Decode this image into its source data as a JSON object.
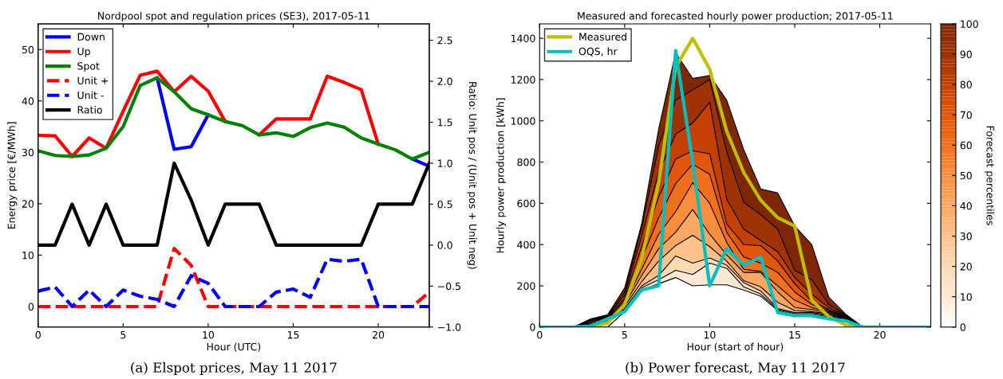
{
  "chart_data": [
    {
      "type": "line",
      "title": "Nordpool spot and regulation prices (SE3), 2017-05-11",
      "xlabel": "Hour (UTC)",
      "ylabel": "Energy price [€/MWh]",
      "y2label": "Ratio: Unit pos / (Unit pos + Unit neg)",
      "x": [
        0,
        1,
        2,
        3,
        4,
        5,
        6,
        7,
        8,
        9,
        10,
        11,
        12,
        13,
        14,
        15,
        16,
        17,
        18,
        19,
        20,
        21,
        22,
        23
      ],
      "xlim": [
        0,
        23
      ],
      "xticks": [
        0,
        5,
        10,
        15,
        20
      ],
      "ylim": [
        -4,
        55
      ],
      "yticks": [
        0,
        10,
        20,
        30,
        40,
        50
      ],
      "y2lim": [
        -1,
        2.7
      ],
      "y2ticks": [
        {
          "value": -1,
          "label": "−1.0"
        },
        {
          "value": -0.5,
          "label": "−0.5"
        },
        {
          "value": 0,
          "label": "0.0"
        },
        {
          "value": 0.5,
          "label": "0.5"
        },
        {
          "value": 1,
          "label": "1.0"
        },
        {
          "value": 1.5,
          "label": "1.5"
        },
        {
          "value": 2,
          "label": "2.0"
        },
        {
          "value": 2.5,
          "label": "2.5"
        }
      ],
      "legend": "top left",
      "grid": false,
      "marker": "none",
      "series": [
        {
          "name": "Down",
          "color": "#0000ff",
          "line_style": "solid",
          "values": [
            null,
            null,
            null,
            null,
            null,
            null,
            null,
            44.5,
            30.6,
            31.1,
            37.3,
            null,
            null,
            null,
            null,
            null,
            null,
            null,
            null,
            null,
            null,
            null,
            28.7,
            27.3
          ]
        },
        {
          "name": "Up",
          "color": "#ff0000",
          "line_style": "solid",
          "values": [
            33.3,
            33.2,
            29.2,
            32.8,
            30.8,
            38,
            45,
            45.8,
            41.8,
            44.8,
            41.9,
            36,
            null,
            33.4,
            36.5,
            36.5,
            36.5,
            44.8,
            43.6,
            42.2,
            31.6,
            null,
            null,
            null
          ]
        },
        {
          "name": "Spot",
          "color": "#008000",
          "line_style": "solid",
          "values": [
            30.3,
            29.4,
            29.2,
            29.5,
            30.8,
            35,
            43,
            44.5,
            41.8,
            38.5,
            37.3,
            36,
            35.2,
            33.4,
            33.8,
            33.1,
            34.8,
            35.7,
            34.9,
            32.8,
            31.6,
            30.5,
            28.7,
            30
          ]
        },
        {
          "name": "Unit +",
          "color": "#ff0000",
          "line_style": "dashed",
          "values": [
            0,
            0,
            0,
            0,
            0,
            0,
            0,
            0,
            11.3,
            8,
            0,
            0,
            0,
            0,
            0,
            0,
            0,
            0,
            0,
            0,
            0,
            0,
            0,
            2.8
          ]
        },
        {
          "name": "Unit -",
          "color": "#0000ff",
          "line_style": "dashed",
          "values": [
            3,
            3.8,
            0,
            3.2,
            0,
            3.2,
            2,
            1.4,
            0,
            6,
            4.5,
            0,
            0,
            0,
            2.8,
            3.4,
            1.8,
            9.2,
            8.8,
            9.2,
            0,
            0,
            0,
            0
          ]
        },
        {
          "name": "Ratio",
          "color": "#000000",
          "line_style": "solid",
          "axis": "y2",
          "values": [
            0,
            0,
            0.5,
            0,
            0.5,
            0,
            0,
            0,
            1,
            0.55,
            0,
            0.5,
            0.5,
            0.5,
            0,
            0,
            0,
            0,
            0,
            0,
            0.5,
            0.5,
            0.5,
            1
          ]
        }
      ],
      "annotations": [
        "(a) Elspot prices, May 11 2017"
      ]
    },
    {
      "type": "area",
      "title": "Measured and forecasted hourly power production; 2017-05-11",
      "xlabel": "Hour (start of hour)",
      "ylabel": "Hourly power production [kWh]",
      "clabel": "Forecast percentiles",
      "x": [
        0,
        1,
        2,
        3,
        4,
        5,
        6,
        7,
        8,
        9,
        10,
        11,
        12,
        13,
        14,
        15,
        16,
        17,
        18,
        19,
        20,
        21,
        22,
        23
      ],
      "xlim": [
        0,
        23
      ],
      "xticks": [
        0,
        5,
        10,
        15,
        20
      ],
      "ylim": [
        0,
        1470
      ],
      "yticks": [
        0,
        200,
        400,
        600,
        800,
        1000,
        1200,
        1400
      ],
      "clim": [
        0,
        100
      ],
      "cticks": [
        0,
        10,
        20,
        30,
        40,
        50,
        60,
        70,
        80,
        90,
        100
      ],
      "legend": "top left",
      "grid": false,
      "series": [
        {
          "color": "#ffffff",
          "values": [
            0,
            0,
            0,
            0,
            0,
            75,
            180,
            210,
            240,
            200,
            205,
            205,
            180,
            150,
            80,
            60,
            60,
            50,
            40,
            0,
            0,
            0,
            0,
            0
          ]
        },
        {
          "color": "#fee8d3",
          "values": [
            0,
            0,
            0,
            5,
            20,
            85,
            190,
            230,
            275,
            255,
            310,
            285,
            195,
            160,
            85,
            65,
            65,
            55,
            42,
            0,
            0,
            0,
            0,
            0
          ]
        },
        {
          "color": "#fdd9b4",
          "values": [
            0,
            0,
            0,
            10,
            25,
            90,
            200,
            250,
            345,
            310,
            335,
            300,
            215,
            175,
            90,
            70,
            70,
            60,
            44,
            0,
            0,
            0,
            0,
            0
          ]
        },
        {
          "color": "#fdc28c",
          "values": [
            0,
            0,
            0,
            15,
            30,
            100,
            220,
            320,
            395,
            445,
            390,
            320,
            225,
            195,
            120,
            80,
            75,
            65,
            46,
            0,
            0,
            0,
            0,
            0
          ]
        },
        {
          "color": "#fda762",
          "values": [
            0,
            0,
            0,
            20,
            35,
            110,
            250,
            380,
            460,
            570,
            450,
            350,
            265,
            265,
            170,
            95,
            85,
            70,
            48,
            0,
            0,
            0,
            0,
            0
          ]
        },
        {
          "color": "#fb8d3d",
          "values": [
            0,
            0,
            0,
            25,
            40,
            120,
            280,
            450,
            560,
            700,
            600,
            410,
            280,
            270,
            200,
            130,
            95,
            75,
            50,
            0,
            0,
            0,
            0,
            0
          ]
        },
        {
          "color": "#f2701d",
          "values": [
            0,
            0,
            0,
            28,
            45,
            130,
            330,
            530,
            695,
            790,
            740,
            460,
            340,
            310,
            265,
            170,
            110,
            80,
            52,
            0,
            0,
            0,
            0,
            0
          ]
        },
        {
          "color": "#e25609",
          "values": [
            0,
            0,
            0,
            30,
            48,
            140,
            390,
            630,
            815,
            855,
            840,
            500,
            400,
            395,
            320,
            210,
            125,
            85,
            55,
            0,
            0,
            0,
            0,
            0
          ]
        },
        {
          "color": "#c44103",
          "values": [
            0,
            0,
            0,
            33,
            52,
            155,
            440,
            750,
            935,
            990,
            1090,
            620,
            475,
            420,
            365,
            240,
            160,
            95,
            58,
            0,
            0,
            0,
            0,
            0
          ]
        },
        {
          "color": "#9f3303",
          "values": [
            0,
            0,
            0,
            36,
            56,
            170,
            480,
            880,
            1100,
            1150,
            1200,
            850,
            605,
            545,
            475,
            275,
            230,
            110,
            60,
            0,
            0,
            0,
            0,
            0
          ]
        },
        {
          "color": "#7f2704",
          "values": [
            0,
            0,
            0,
            40,
            60,
            190,
            500,
            960,
            1330,
            1205,
            1220,
            1100,
            860,
            670,
            650,
            490,
            400,
            145,
            62,
            0,
            0,
            0,
            0,
            0
          ]
        },
        {
          "type": "line",
          "name": "Measured",
          "color": "#bfbf00",
          "values": [
            null,
            null,
            0,
            0,
            20,
            110,
            330,
            700,
            1260,
            1400,
            1250,
            950,
            750,
            615,
            530,
            490,
            130,
            50,
            10,
            0,
            0,
            null,
            null,
            null
          ]
        },
        {
          "type": "line",
          "name": "OQS, hr",
          "color": "#00bfbf",
          "values": [
            0,
            0,
            0,
            5,
            40,
            75,
            180,
            200,
            1340,
            800,
            200,
            380,
            300,
            340,
            70,
            55,
            55,
            40,
            30,
            0,
            0,
            0,
            0,
            0
          ]
        }
      ],
      "annotations": [
        "(b) Power forecast, May 11 2017"
      ]
    }
  ]
}
